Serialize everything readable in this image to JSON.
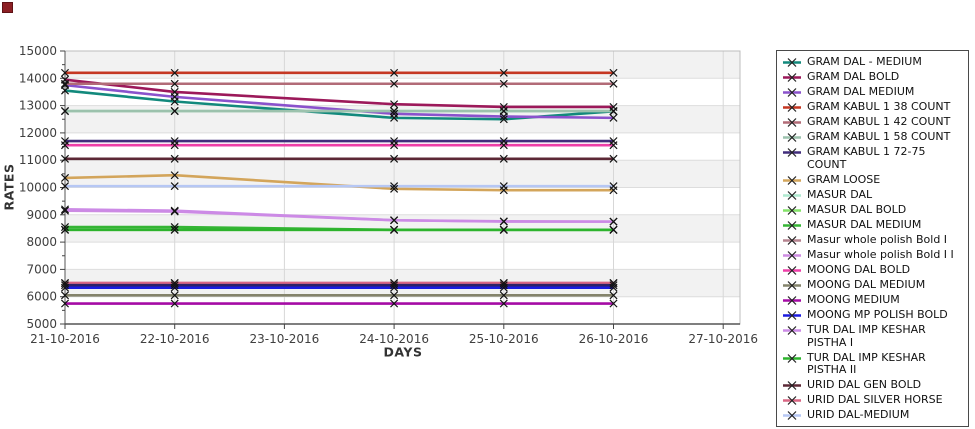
{
  "window": {
    "corner_icon": "maroon-square"
  },
  "chart_data": {
    "type": "line",
    "title": "",
    "xlabel": "DAYS",
    "ylabel": "RATES",
    "x_tick_labels": [
      "21-10-2016",
      "22-10-2016",
      "23-10-2016",
      "24-10-2016",
      "25-10-2016",
      "26-10-2016",
      "27-10-2016"
    ],
    "y_ticks": [
      5000,
      6000,
      7000,
      8000,
      9000,
      10000,
      11000,
      12000,
      13000,
      14000,
      15000
    ],
    "ylim": [
      5000,
      15000
    ],
    "grid": true,
    "plot_bands": "alternating gray/white per 1000",
    "legend_position": "right",
    "marker": "x",
    "data_day_indices": [
      0,
      1,
      3,
      4,
      5
    ],
    "series": [
      {
        "name": "GRAM DAL - MEDIUM",
        "color": "#12897c",
        "values": [
          13550,
          13150,
          12550,
          12500,
          12790
        ]
      },
      {
        "name": "GRAM DAL BOLD",
        "color": "#9c195a",
        "values": [
          13950,
          13500,
          13050,
          12950,
          12950
        ]
      },
      {
        "name": "GRAM DAL MEDIUM",
        "color": "#8a52cc",
        "values": [
          13750,
          13320,
          12700,
          12600,
          12550
        ]
      },
      {
        "name": "GRAM KABUL 1 38 COUNT",
        "color": "#c53722",
        "values": [
          14200,
          14200,
          14200,
          14200,
          14200
        ]
      },
      {
        "name": "GRAM KABUL 1 42 COUNT",
        "color": "#b26b77",
        "values": [
          13800,
          13800,
          13800,
          13800,
          13800
        ]
      },
      {
        "name": "GRAM KABUL 1 58 COUNT",
        "color": "#9cc2ad",
        "values": [
          12800,
          12800,
          12800,
          12800,
          12800
        ]
      },
      {
        "name": "GRAM KABUL 1 72-75 COUNT",
        "color": "#412d7c",
        "values": [
          11700,
          11700,
          11700,
          11700,
          11700
        ]
      },
      {
        "name": "GRAM LOOSE",
        "color": "#d3a55b",
        "values": [
          10350,
          10450,
          9950,
          9900,
          9900
        ]
      },
      {
        "name": "MASUR DAL",
        "color": "#aee9cf",
        "values": [
          12800,
          12800,
          12800,
          12800,
          12800
        ]
      },
      {
        "name": "MASUR DAL BOLD",
        "color": "#84e268",
        "values": [
          8450,
          8450,
          8450,
          8450,
          8450
        ]
      },
      {
        "name": "MASUR DAL MEDIUM",
        "color": "#35b535",
        "values": [
          8550,
          8550,
          8450,
          8450,
          8450
        ]
      },
      {
        "name": "Masur whole polish Bold I",
        "color": "#b5838f",
        "values": [
          6500,
          6500,
          6500,
          6500,
          6500
        ]
      },
      {
        "name": "Masur whole polish Bold I I",
        "color": "#cd8ce2",
        "values": [
          9150,
          9120,
          8800,
          8760,
          8750
        ]
      },
      {
        "name": "MOONG DAL BOLD",
        "color": "#ee3fa8",
        "values": [
          11550,
          11550,
          11550,
          11550,
          11550
        ]
      },
      {
        "name": "MOONG DAL MEDIUM",
        "color": "#84836b",
        "values": [
          6050,
          6050,
          6050,
          6050,
          6050
        ]
      },
      {
        "name": "MOONG MEDIUM",
        "color": "#a50ba5",
        "values": [
          5750,
          5750,
          5750,
          5750,
          5750
        ]
      },
      {
        "name": "MOONG MP POLISH BOLD",
        "color": "#1b1bdf",
        "values": [
          6330,
          6330,
          6330,
          6330,
          6330
        ]
      },
      {
        "name": "TUR DAL IMP KESHAR PISTHA I",
        "color": "#cc8ae6",
        "values": [
          9200,
          9150,
          8800,
          8750,
          8750
        ]
      },
      {
        "name": "TUR DAL IMP KESHAR PISTHA II",
        "color": "#2db32d",
        "values": [
          8450,
          8450,
          8450,
          8450,
          8450
        ]
      },
      {
        "name": "URID DAL GEN BOLD",
        "color": "#5c2836",
        "values": [
          11050,
          11050,
          11050,
          11050,
          11050
        ]
      },
      {
        "name": "URID DAL SILVER HORSE",
        "color": "#d96684",
        "values": [
          6500,
          6500,
          6500,
          6500,
          6500
        ]
      },
      {
        "name": "URID DAL-MEDIUM",
        "color": "#b6c7f4",
        "values": [
          10050,
          10050,
          10050,
          10050,
          10050
        ]
      }
    ],
    "extra_lines": [
      {
        "label": "",
        "color": "#2c2168",
        "values": [
          6420,
          6420,
          6420,
          6420,
          6420
        ]
      }
    ]
  }
}
